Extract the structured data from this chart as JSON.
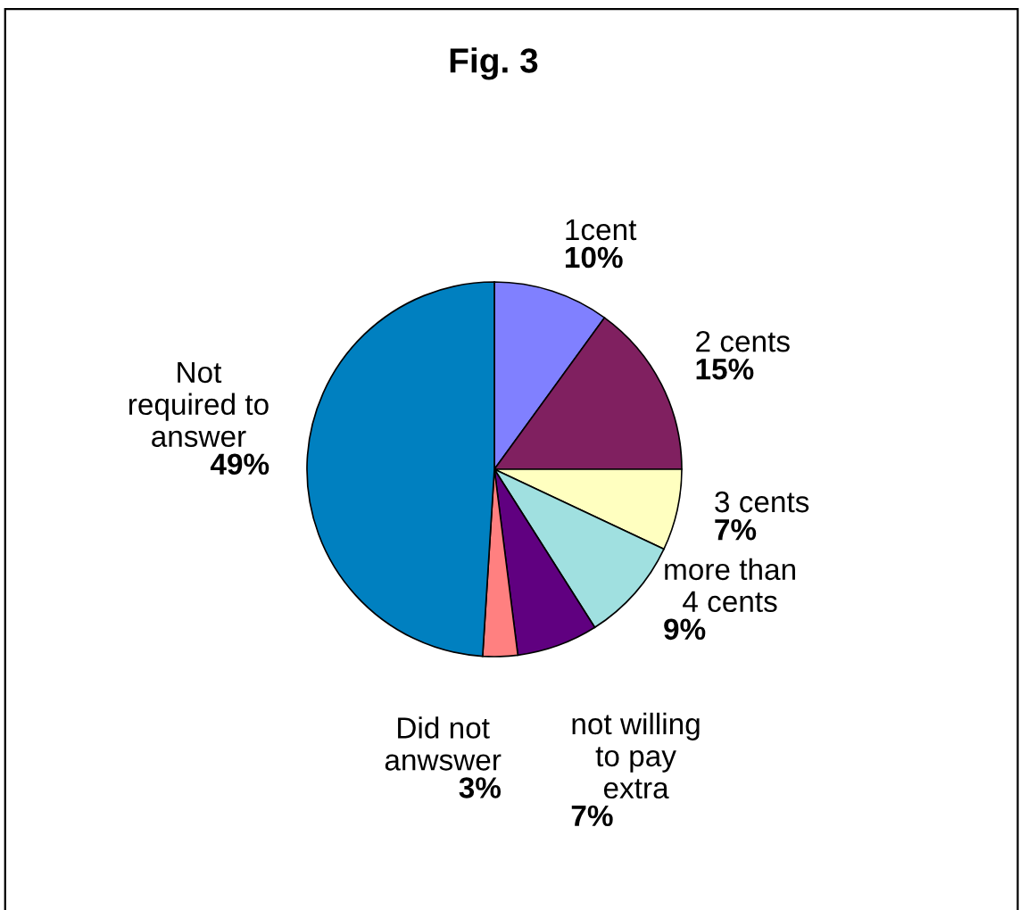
{
  "chart_data": {
    "type": "pie",
    "title": "Fig. 3",
    "categories": [
      "1cent",
      "2 cents",
      "3 cents",
      "more than\n4 cents",
      "not willing\nto pay\nextra",
      "Did not\nanwswer",
      "Not\nrequired to\nanswer"
    ],
    "values": [
      10,
      15,
      7,
      9,
      7,
      3,
      49
    ],
    "value_labels": [
      "10%",
      "15%",
      "7%",
      "9%",
      "7%",
      "3%",
      "49%"
    ],
    "colors": [
      "#8080ff",
      "#802060",
      "#ffffc0",
      "#a0e0e0",
      "#600080",
      "#ff8080",
      "#0080c0"
    ]
  }
}
